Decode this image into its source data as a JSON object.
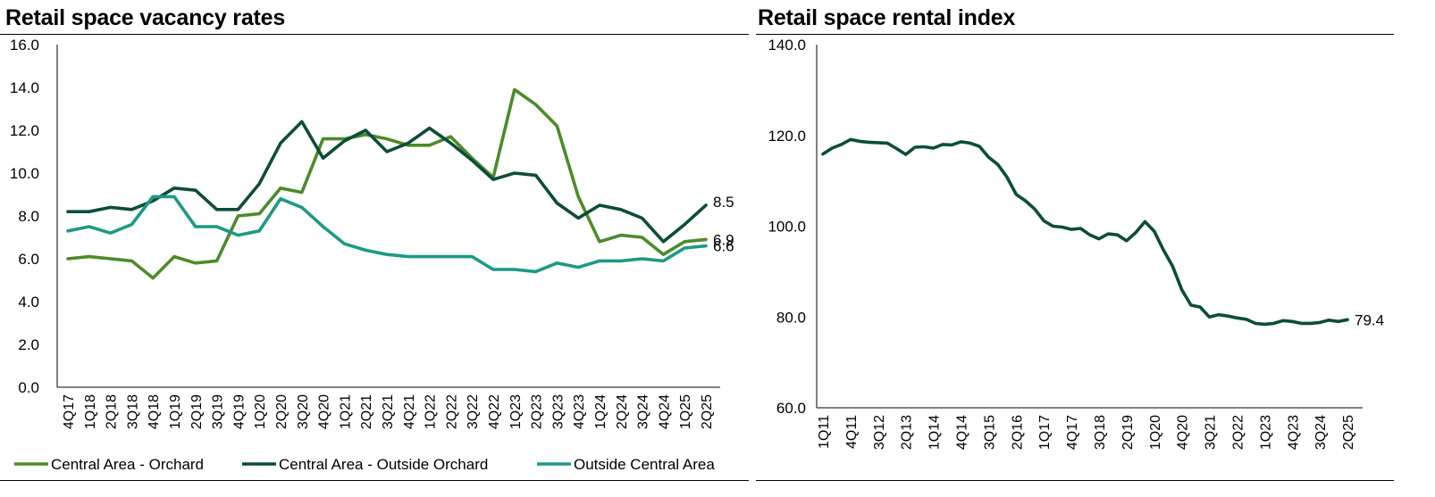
{
  "titles": {
    "left": "Retail space vacancy rates",
    "right": "Retail space rental index"
  },
  "colors": {
    "orchard": "#4e8a2a",
    "outside_orchard": "#0c4d39",
    "outside_central": "#1b9a86",
    "rental": "#0c4d39",
    "axis": "#000000"
  },
  "chart_data": [
    {
      "type": "line",
      "title": "Retail space vacancy rates",
      "xlabel": "",
      "ylabel": "",
      "ylim": [
        0,
        16
      ],
      "yticks": [
        "0.0",
        "2.0",
        "4.0",
        "6.0",
        "8.0",
        "10.0",
        "12.0",
        "14.0",
        "16.0"
      ],
      "xticks": [
        "4Q17",
        "1Q18",
        "2Q18",
        "3Q18",
        "4Q18",
        "1Q19",
        "2Q19",
        "3Q19",
        "4Q19",
        "1Q20",
        "2Q20",
        "3Q20",
        "4Q20",
        "1Q21",
        "2Q21",
        "3Q21",
        "4Q21",
        "1Q22",
        "2Q22",
        "3Q22",
        "4Q22",
        "1Q23",
        "2Q23",
        "3Q23",
        "4Q23",
        "1Q24",
        "2Q24",
        "3Q24",
        "4Q24",
        "1Q25",
        "2Q25"
      ],
      "grid": false,
      "legend_position": "bottom",
      "series": [
        {
          "name": "Central Area - Orchard",
          "color": "#4e8a2a",
          "values": [
            6.0,
            6.1,
            6.0,
            5.9,
            5.1,
            6.1,
            5.8,
            5.9,
            8.0,
            8.1,
            9.3,
            9.1,
            11.6,
            11.6,
            11.8,
            11.6,
            11.3,
            11.3,
            11.7,
            10.7,
            9.8,
            13.9,
            13.2,
            12.2,
            8.9,
            6.8,
            7.1,
            7.0,
            6.2,
            6.8,
            6.9
          ],
          "end_label": "6.9"
        },
        {
          "name": "Central Area - Outside Orchard",
          "color": "#0c4d39",
          "values": [
            8.2,
            8.2,
            8.4,
            8.3,
            8.7,
            9.3,
            9.2,
            8.3,
            8.3,
            9.5,
            11.4,
            12.4,
            10.7,
            11.5,
            12.0,
            11.0,
            11.4,
            12.1,
            11.4,
            10.6,
            9.7,
            10.0,
            9.9,
            8.6,
            7.9,
            8.5,
            8.3,
            7.9,
            6.8,
            7.6,
            8.5
          ],
          "end_label": "8.5"
        },
        {
          "name": "Outside Central Area",
          "color": "#1b9a86",
          "values": [
            7.3,
            7.5,
            7.2,
            7.6,
            8.9,
            8.9,
            7.5,
            7.5,
            7.1,
            7.3,
            8.8,
            8.4,
            7.5,
            6.7,
            6.4,
            6.2,
            6.1,
            6.1,
            6.1,
            6.1,
            5.5,
            5.5,
            5.4,
            5.8,
            5.6,
            5.9,
            5.9,
            6.0,
            5.9,
            6.5,
            6.6
          ],
          "end_label": "6.6"
        }
      ]
    },
    {
      "type": "line",
      "title": "Retail space rental index",
      "xlabel": "",
      "ylabel": "",
      "ylim": [
        60,
        140
      ],
      "yticks": [
        "60.0",
        "80.0",
        "100.0",
        "120.0",
        "140.0"
      ],
      "xticks": [
        "1Q11",
        "4Q11",
        "3Q12",
        "2Q13",
        "1Q14",
        "4Q14",
        "3Q15",
        "2Q16",
        "1Q17",
        "4Q17",
        "3Q18",
        "2Q19",
        "1Q20",
        "4Q20",
        "3Q21",
        "2Q22",
        "1Q23",
        "4Q23",
        "3Q24",
        "2Q25"
      ],
      "grid": false,
      "legend_position": "none",
      "series": [
        {
          "name": "",
          "color": "#0c4d39",
          "values": [
            115.9,
            117.2,
            118.0,
            119.1,
            118.7,
            118.5,
            118.4,
            118.3,
            117.1,
            115.8,
            117.4,
            117.5,
            117.2,
            118.0,
            117.9,
            118.6,
            118.3,
            117.6,
            115.2,
            113.6,
            110.8,
            107.0,
            105.6,
            103.8,
            101.2,
            100.0,
            99.8,
            99.3,
            99.5,
            98.1,
            97.2,
            98.3,
            98.1,
            96.8,
            98.6,
            101.0,
            98.9,
            94.8,
            91.2,
            86.0,
            82.6,
            82.2,
            80.0,
            80.5,
            80.2,
            79.8,
            79.5,
            78.6,
            78.4,
            78.6,
            79.2,
            79.0,
            78.6,
            78.6,
            78.8,
            79.3,
            79.0,
            79.4
          ],
          "end_label": "79.4"
        }
      ]
    }
  ]
}
